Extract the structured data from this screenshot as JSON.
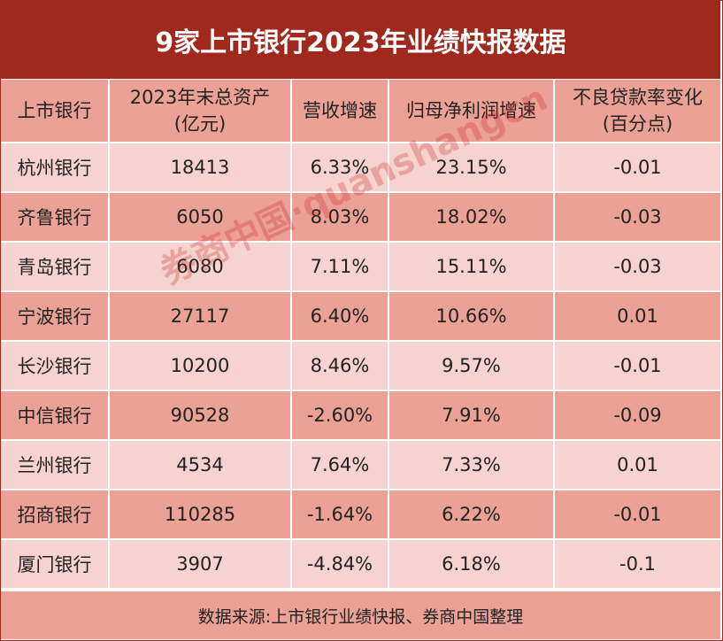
{
  "title": "9家上市银行2023年业绩快报数据",
  "table": {
    "headers": [
      {
        "line1": "上市银行",
        "line2": ""
      },
      {
        "line1": "2023年末总资产",
        "line2": "(亿元)"
      },
      {
        "line1": "营收增速",
        "line2": ""
      },
      {
        "line1": "归母净利润增速",
        "line2": ""
      },
      {
        "line1": "不良贷款率变化",
        "line2": "(百分点)"
      }
    ],
    "rows": [
      [
        "杭州银行",
        "18413",
        "6.33%",
        "23.15%",
        "-0.01"
      ],
      [
        "齐鲁银行",
        "6050",
        "8.03%",
        "18.02%",
        "-0.03"
      ],
      [
        "青岛银行",
        "6080",
        "7.11%",
        "15.11%",
        "-0.03"
      ],
      [
        "宁波银行",
        "27117",
        "6.40%",
        "10.66%",
        "0.01"
      ],
      [
        "长沙银行",
        "10200",
        "8.46%",
        "9.57%",
        "-0.01"
      ],
      [
        "中信银行",
        "90528",
        "-2.60%",
        "7.91%",
        "-0.09"
      ],
      [
        "兰州银行",
        "4534",
        "7.64%",
        "7.33%",
        "0.01"
      ],
      [
        "招商银行",
        "110285",
        "-1.64%",
        "6.22%",
        "-0.01"
      ],
      [
        "厦门银行",
        "3907",
        "-4.84%",
        "6.18%",
        "-0.1"
      ]
    ]
  },
  "footer": "数据来源:上市银行业绩快报、券商中国整理",
  "watermark": "券商中国·quanshangcn",
  "colors": {
    "title_bg": "#a0291d",
    "row_dark": "#eba196",
    "row_light": "#f6d3ce"
  }
}
